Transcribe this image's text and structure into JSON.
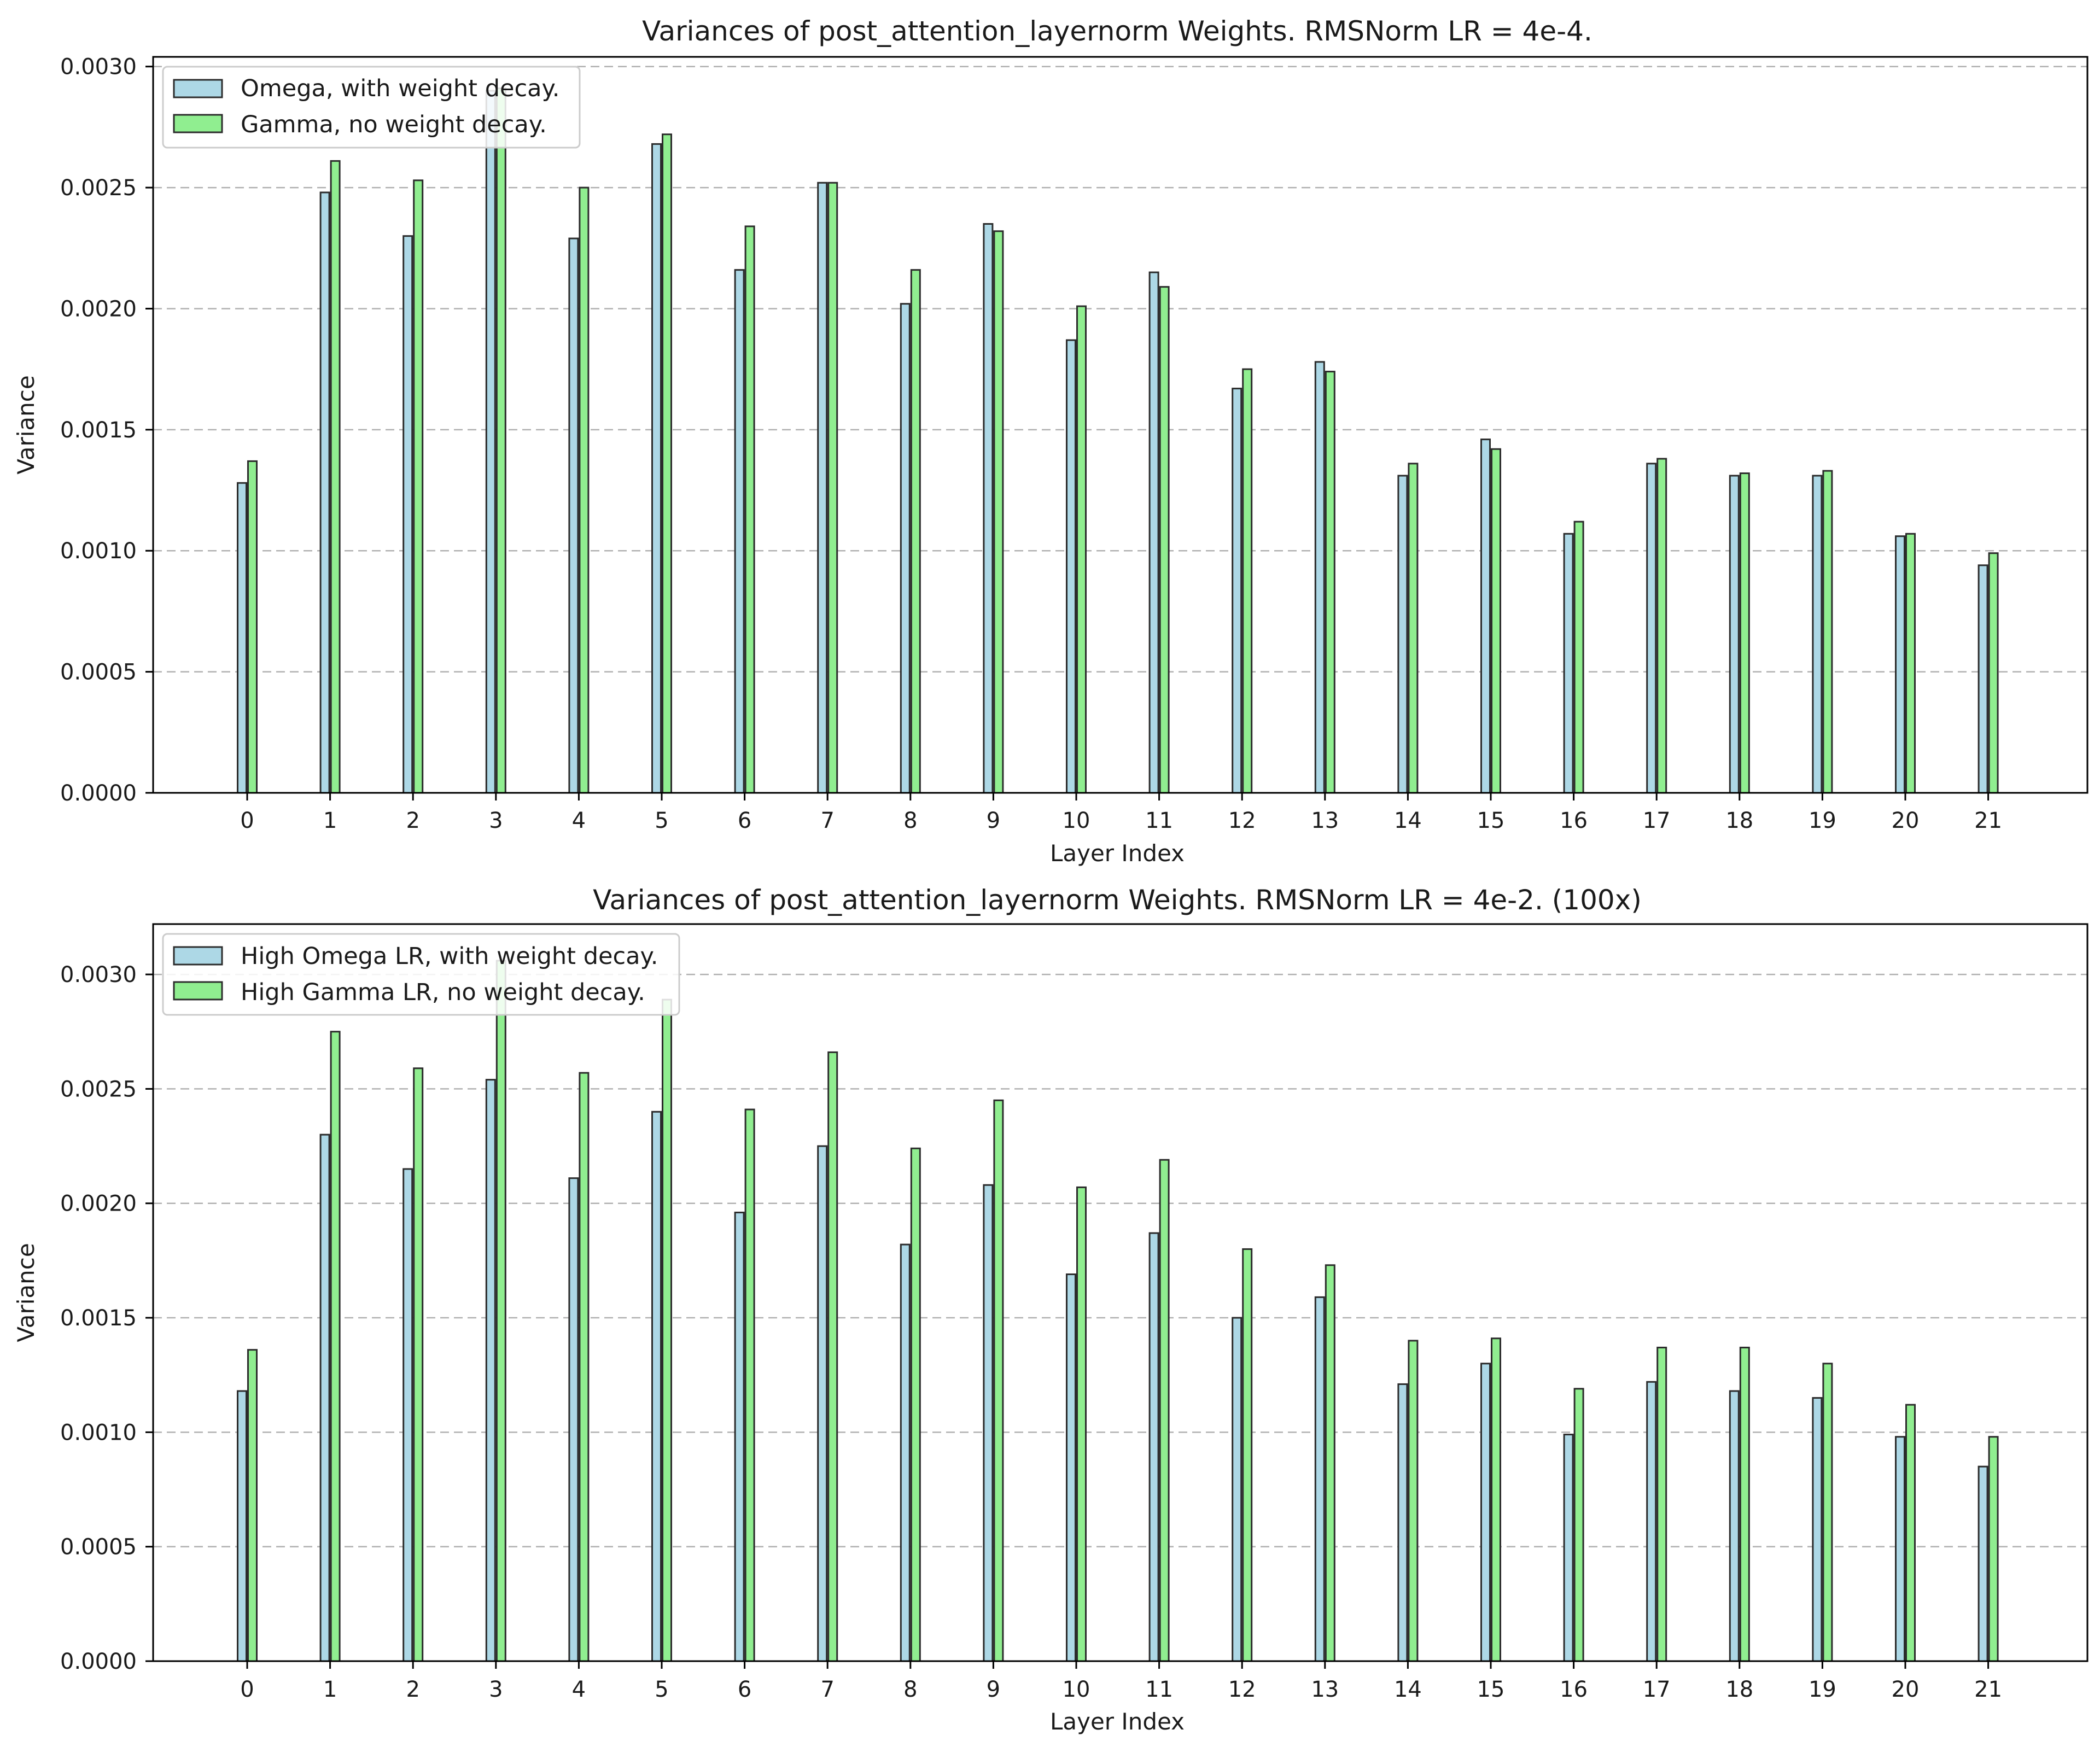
{
  "colors": {
    "omega": "#add8e6",
    "gamma": "#90ee90",
    "edge": "#2b2b2b",
    "grid": "#b0b0b0"
  },
  "chart_data": [
    {
      "type": "bar",
      "title": "Variances of post_attention_layernorm Weights. RMSNorm LR = 4e-4.",
      "xlabel": "Layer Index",
      "ylabel": "Variance",
      "categories": [
        "0",
        "1",
        "2",
        "3",
        "4",
        "5",
        "6",
        "7",
        "8",
        "9",
        "10",
        "11",
        "12",
        "13",
        "14",
        "15",
        "16",
        "17",
        "18",
        "19",
        "20",
        "21"
      ],
      "yticks": [
        "0.0000",
        "0.0005",
        "0.0010",
        "0.0015",
        "0.0020",
        "0.0025",
        "0.0030"
      ],
      "ylim": [
        0,
        0.00304
      ],
      "grid": "y-dashed",
      "legend_position": "upper-left",
      "series": [
        {
          "name": "Omega, with weight decay.",
          "color": "#add8e6",
          "values": [
            0.00128,
            0.00248,
            0.0023,
            0.0029,
            0.00229,
            0.00268,
            0.00216,
            0.00252,
            0.00202,
            0.00235,
            0.00187,
            0.00215,
            0.00167,
            0.00178,
            0.00131,
            0.00146,
            0.00107,
            0.00136,
            0.00131,
            0.00131,
            0.00106,
            0.00094
          ]
        },
        {
          "name": "Gamma, no weight decay.",
          "color": "#90ee90",
          "values": [
            0.00137,
            0.00261,
            0.00253,
            0.00291,
            0.0025,
            0.00272,
            0.00234,
            0.00252,
            0.00216,
            0.00232,
            0.00201,
            0.00209,
            0.00175,
            0.00174,
            0.00136,
            0.00142,
            0.00112,
            0.00138,
            0.00132,
            0.00133,
            0.00107,
            0.00099
          ]
        }
      ]
    },
    {
      "type": "bar",
      "title": "Variances of post_attention_layernorm Weights. RMSNorm LR = 4e-2. (100x)",
      "xlabel": "Layer Index",
      "ylabel": "Variance",
      "categories": [
        "0",
        "1",
        "2",
        "3",
        "4",
        "5",
        "6",
        "7",
        "8",
        "9",
        "10",
        "11",
        "12",
        "13",
        "14",
        "15",
        "16",
        "17",
        "18",
        "19",
        "20",
        "21"
      ],
      "yticks": [
        "0.0000",
        "0.0005",
        "0.0010",
        "0.0015",
        "0.0020",
        "0.0025",
        "0.0030"
      ],
      "ylim": [
        0,
        0.00322
      ],
      "grid": "y-dashed",
      "legend_position": "upper-left",
      "series": [
        {
          "name": "High Omega LR, with weight decay.",
          "color": "#add8e6",
          "values": [
            0.00118,
            0.0023,
            0.00215,
            0.00254,
            0.00211,
            0.0024,
            0.00196,
            0.00225,
            0.00182,
            0.00208,
            0.00169,
            0.00187,
            0.0015,
            0.00159,
            0.00121,
            0.0013,
            0.00099,
            0.00122,
            0.00118,
            0.00115,
            0.00098,
            0.00085
          ]
        },
        {
          "name": "High Gamma LR, no weight decay.",
          "color": "#90ee90",
          "values": [
            0.00136,
            0.00275,
            0.00259,
            0.00306,
            0.00257,
            0.00289,
            0.00241,
            0.00266,
            0.00224,
            0.00245,
            0.00207,
            0.00219,
            0.0018,
            0.00173,
            0.0014,
            0.00141,
            0.00119,
            0.00137,
            0.00137,
            0.0013,
            0.00112,
            0.00098
          ]
        }
      ]
    }
  ]
}
